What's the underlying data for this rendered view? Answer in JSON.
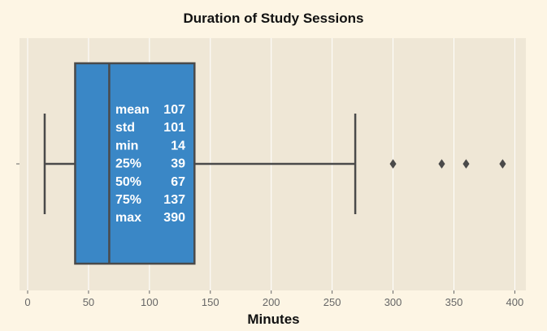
{
  "chart_data": {
    "type": "box",
    "title": "Duration of Study Sessions",
    "xlabel": "Minutes",
    "ylabel": "",
    "xlim": [
      -5,
      410
    ],
    "xticks": [
      0,
      50,
      100,
      150,
      200,
      250,
      300,
      350,
      400
    ],
    "box": {
      "whisker_low": 14,
      "q1": 39,
      "median": 67,
      "q3": 137,
      "whisker_high": 269,
      "outliers": [
        300,
        340,
        360,
        390
      ]
    },
    "stats": [
      {
        "label": "mean",
        "value": "107"
      },
      {
        "label": "std",
        "value": "101"
      },
      {
        "label": "min",
        "value": "14"
      },
      {
        "label": "25%",
        "value": "39"
      },
      {
        "label": "50%",
        "value": "67"
      },
      {
        "label": "75%",
        "value": "137"
      },
      {
        "label": "max",
        "value": "390"
      }
    ],
    "grid": true,
    "colors": {
      "figure_bg": "#fdf5e4",
      "plot_bg": "#efe7d6",
      "grid": "#ffffff",
      "box_fill": "#3a87c6",
      "lines": "#4a4a4a",
      "stats_text": "#ffffff"
    }
  }
}
